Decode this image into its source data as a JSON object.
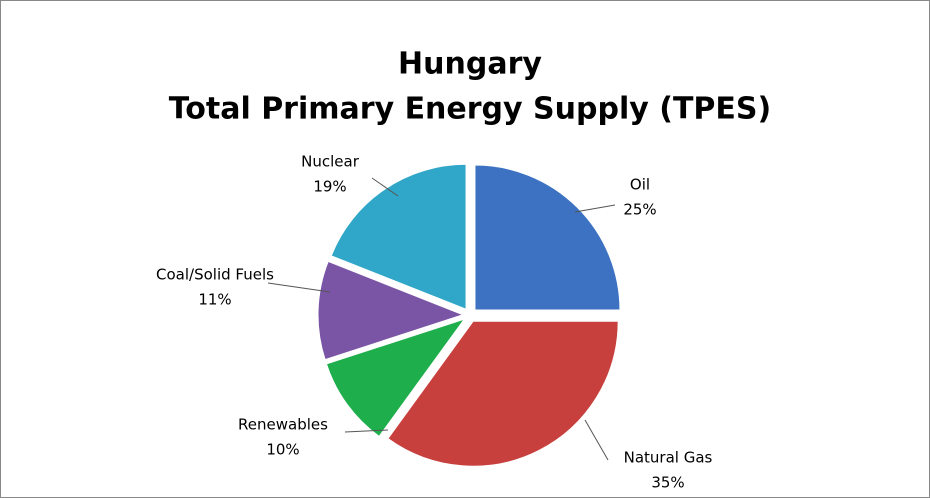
{
  "chart_data": {
    "type": "pie",
    "title": "Hungary",
    "subtitle": "Total Primary Energy Supply (TPES)",
    "categories": [
      "Oil",
      "Natural Gas",
      "Renewables",
      "Coal/Solid Fuels",
      "Nuclear"
    ],
    "values": [
      25,
      35,
      10,
      11,
      19
    ],
    "value_labels": [
      "25%",
      "35%",
      "10%",
      "11%",
      "19%"
    ],
    "colors": [
      "#3d72c2",
      "#c8403d",
      "#1eae4c",
      "#7a55a6",
      "#30a7c8"
    ]
  }
}
